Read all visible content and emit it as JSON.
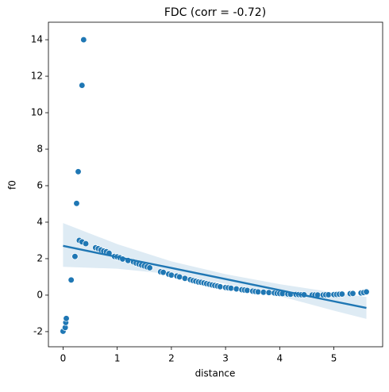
{
  "chart_data": {
    "type": "scatter",
    "title": "FDC (corr = -0.72)",
    "xlabel": "distance",
    "ylabel": "f0",
    "color": "#1f77b4",
    "x": [
      0.0,
      0.04,
      0.05,
      0.06,
      0.15,
      0.22,
      0.25,
      0.28,
      0.3,
      0.35,
      0.35,
      0.38,
      0.42,
      0.6,
      0.65,
      0.7,
      0.75,
      0.8,
      0.85,
      0.95,
      1.0,
      1.05,
      1.1,
      1.2,
      1.3,
      1.35,
      1.4,
      1.45,
      1.5,
      1.55,
      1.6,
      1.8,
      1.85,
      1.95,
      2.0,
      2.1,
      2.15,
      2.25,
      2.35,
      2.4,
      2.45,
      2.5,
      2.55,
      2.6,
      2.65,
      2.7,
      2.75,
      2.8,
      2.85,
      2.9,
      3.0,
      3.05,
      3.1,
      3.2,
      3.3,
      3.35,
      3.4,
      3.5,
      3.55,
      3.6,
      3.7,
      3.8,
      3.9,
      3.95,
      4.0,
      4.05,
      4.15,
      4.2,
      4.3,
      4.35,
      4.4,
      4.45,
      4.6,
      4.65,
      4.7,
      4.8,
      4.85,
      4.9,
      5.0,
      5.05,
      5.1,
      5.15,
      5.3,
      5.35,
      5.5,
      5.55,
      5.6
    ],
    "y": [
      -1.98,
      -1.78,
      -1.5,
      -1.28,
      0.83,
      2.12,
      5.03,
      6.77,
      3.0,
      2.92,
      11.5,
      14.0,
      2.82,
      2.6,
      2.55,
      2.48,
      2.42,
      2.38,
      2.3,
      2.12,
      2.1,
      2.05,
      1.98,
      1.9,
      1.82,
      1.75,
      1.7,
      1.65,
      1.6,
      1.55,
      1.5,
      1.28,
      1.25,
      1.15,
      1.1,
      1.05,
      1.0,
      0.92,
      0.85,
      0.8,
      0.76,
      0.72,
      0.7,
      0.67,
      0.63,
      0.6,
      0.56,
      0.53,
      0.5,
      0.46,
      0.42,
      0.4,
      0.38,
      0.34,
      0.3,
      0.28,
      0.26,
      0.22,
      0.2,
      0.18,
      0.16,
      0.14,
      0.12,
      0.1,
      0.09,
      0.08,
      0.06,
      0.05,
      0.04,
      0.03,
      0.02,
      0.02,
      0.01,
      0.01,
      0.01,
      0.01,
      0.02,
      0.02,
      0.03,
      0.04,
      0.05,
      0.06,
      0.08,
      0.09,
      0.12,
      0.14,
      0.18
    ],
    "fit": {
      "x": [
        0,
        1,
        2,
        3,
        4,
        5,
        5.6
      ],
      "y": [
        2.7,
        2.09,
        1.49,
        0.88,
        0.27,
        -0.34,
        -0.7
      ],
      "lower": [
        1.55,
        1.45,
        1.15,
        0.62,
        -0.05,
        -0.85,
        -1.3
      ],
      "upper": [
        3.95,
        2.8,
        1.85,
        1.15,
        0.6,
        0.15,
        -0.1
      ]
    },
    "xlim": [
      -0.27,
      5.9
    ],
    "ylim": [
      -2.83,
      14.96
    ],
    "xticks": [
      0,
      1,
      2,
      3,
      4,
      5
    ],
    "yticks": [
      -2,
      0,
      2,
      4,
      6,
      8,
      10,
      12,
      14
    ]
  }
}
